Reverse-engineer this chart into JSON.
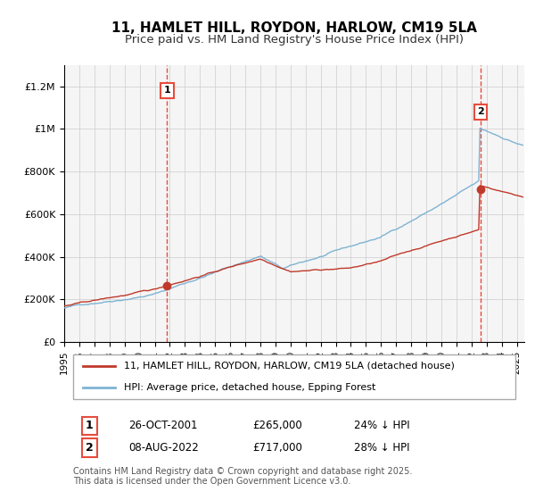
{
  "title": "11, HAMLET HILL, ROYDON, HARLOW, CM19 5LA",
  "subtitle": "Price paid vs. HM Land Registry's House Price Index (HPI)",
  "legend_line1": "11, HAMLET HILL, ROYDON, HARLOW, CM19 5LA (detached house)",
  "legend_line2": "HPI: Average price, detached house, Epping Forest",
  "footnote": "Contains HM Land Registry data © Crown copyright and database right 2025.\nThis data is licensed under the Open Government Licence v3.0.",
  "sale1_label": "1",
  "sale1_date": "26-OCT-2001",
  "sale1_price": "£265,000",
  "sale1_hpi": "24% ↓ HPI",
  "sale1_year": 2001.82,
  "sale1_value": 265000,
  "sale2_label": "2",
  "sale2_date": "08-AUG-2022",
  "sale2_price": "£717,000",
  "sale2_hpi": "28% ↓ HPI",
  "sale2_year": 2022.61,
  "sale2_value": 717000,
  "line_color_red": "#c0392b",
  "line_color_blue": "#7fb3d3",
  "vline_color": "#e74c3c",
  "dot_color_red": "#c0392b",
  "grid_color": "#cccccc",
  "background_color": "#ffffff",
  "plot_bg_color": "#f5f5f5",
  "ylim": [
    0,
    1300000
  ],
  "xlim_start": 1995,
  "xlim_end": 2025.5,
  "yticks": [
    0,
    200000,
    400000,
    600000,
    800000,
    1000000,
    1200000
  ],
  "ytick_labels": [
    "£0",
    "£200K",
    "£400K",
    "£600K",
    "£800K",
    "£1M",
    "£1.2M"
  ],
  "title_fontsize": 11,
  "subtitle_fontsize": 9.5,
  "axis_fontsize": 8,
  "legend_fontsize": 8,
  "footnote_fontsize": 7
}
